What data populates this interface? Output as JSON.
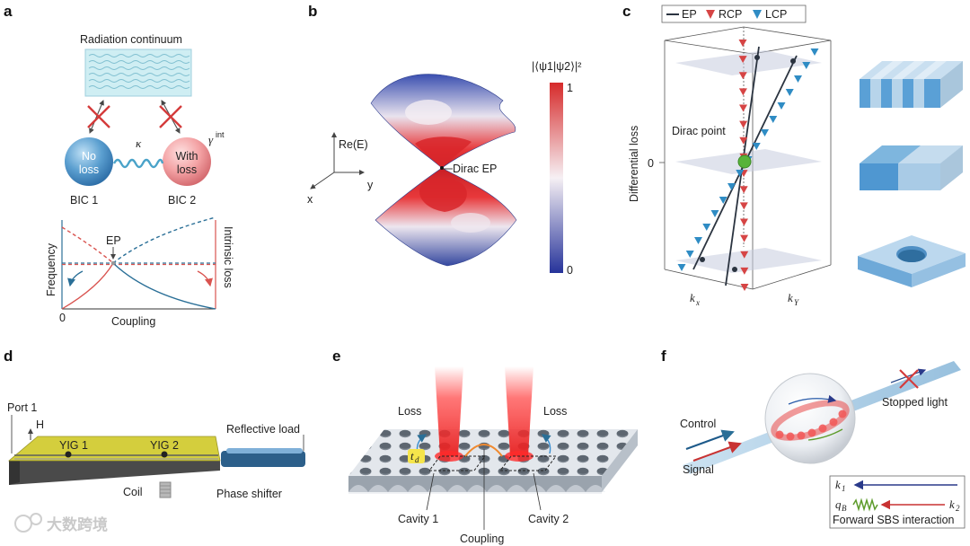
{
  "panels": {
    "a": "a",
    "b": "b",
    "c": "c",
    "d": "d",
    "e": "e",
    "f": "f"
  },
  "a": {
    "radiation_continuum": "Radiation continuum",
    "kappa": "κ",
    "gamma_int": "γ",
    "gamma_sup": "int",
    "ball1_line1": "No",
    "ball1_line2": "loss",
    "ball2_line1": "With",
    "ball2_line2": "loss",
    "bic1": "BIC 1",
    "bic2": "BIC 2",
    "ep": "EP",
    "ylabel_left": "Frequency",
    "ylabel_right": "Intrinsic loss",
    "xlabel": "Coupling",
    "origin": "0",
    "colors": {
      "red": "#d9534f",
      "blue": "#2a6f97"
    }
  },
  "b": {
    "axis_z": "Re(E)",
    "axis_x": "x",
    "axis_y": "y",
    "dirac_ep": "Dirac EP",
    "colorbar_title": "|⟨ψ1|ψ2⟩|²",
    "colorbar_max": "1",
    "colorbar_min": "0"
  },
  "c": {
    "legend": [
      "EP",
      "RCP",
      "LCP"
    ],
    "ylabel": "Differential loss",
    "zero": "0",
    "dirac_point": "Dirac point",
    "kx": "k",
    "kx_sub": "x",
    "ky": "k",
    "ky_sub": "Y",
    "colors": {
      "rcp": "#d64545",
      "lcp": "#2f8cc4",
      "ep": "#2b3440"
    }
  },
  "d": {
    "port1": "Port 1",
    "h": "H",
    "yig1": "YIG 1",
    "yig2": "YIG 2",
    "reflective_load": "Reflective load",
    "coil": "Coil",
    "phase_shifter": "Phase shifter"
  },
  "e": {
    "loss_left": "Loss",
    "loss_right": "Loss",
    "td": "t",
    "td_sub": "d",
    "cavity1": "Cavity 1",
    "cavity2": "Cavity 2",
    "coupling": "Coupling"
  },
  "f": {
    "control": "Control",
    "signal": "Signal",
    "stopped_light": "Stopped light",
    "k1": "k",
    "k1_sub": "1",
    "qb": "q",
    "qb_sub": "B",
    "k2": "k",
    "k2_sub": "2",
    "sbs": "Forward SBS interaction"
  },
  "watermark": "大数跨境"
}
